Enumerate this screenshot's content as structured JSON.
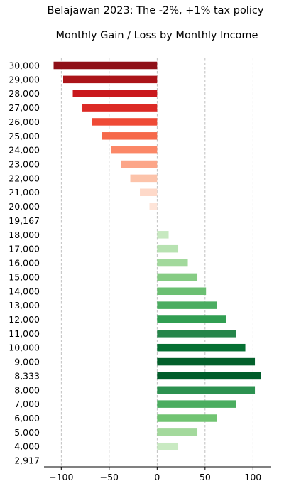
{
  "chart_data": {
    "type": "bar",
    "orientation": "horizontal",
    "title": "Belajawan 2023: The -2%, +1% tax policy",
    "subtitle": "Monthly Gain / Loss by Monthly Income",
    "xlabel": "",
    "ylabel": "",
    "xlim": [
      -118,
      119
    ],
    "xticks": [
      "−100",
      "−50",
      "0",
      "50",
      "100"
    ],
    "xtick_values": [
      -100,
      -50,
      0,
      50,
      100
    ],
    "grid": "vertical dashed",
    "categories": [
      "30,000",
      "29,000",
      "28,000",
      "27,000",
      "26,000",
      "25,000",
      "24,000",
      "23,000",
      "22,000",
      "21,000",
      "20,000",
      "19,167",
      "18,000",
      "17,000",
      "16,000",
      "15,000",
      "14,000",
      "13,000",
      "12,000",
      "11,000",
      "10,000",
      "9,000",
      "8,333",
      "8,000",
      "7,000",
      "6,000",
      "5,000",
      "4,000",
      "2,917"
    ],
    "values": [
      -108,
      -98,
      -88,
      -78,
      -68,
      -58,
      -48,
      -38,
      -28,
      -18,
      -8,
      0,
      12,
      22,
      32,
      42,
      51,
      62,
      72,
      82,
      92,
      102,
      108,
      102,
      82,
      62,
      42,
      22,
      0
    ],
    "colors": [
      "#8f1018",
      "#ab1419",
      "#c9181d",
      "#dc2a26",
      "#ef4a36",
      "#f6694a",
      "#fb8767",
      "#fca588",
      "#fcc3aa",
      "#fed9c9",
      "#fee4d8",
      "#ffffff",
      "#c7e9c0",
      "#b7e2b1",
      "#a2d99c",
      "#86cc84",
      "#6bbf72",
      "#4bad61",
      "#319e52",
      "#25854a",
      "#067033",
      "#03602b",
      "#005c2a",
      "#2c9150",
      "#4aad5f",
      "#71c472",
      "#a3d99c",
      "#c9eac2",
      "#ffffff"
    ]
  }
}
